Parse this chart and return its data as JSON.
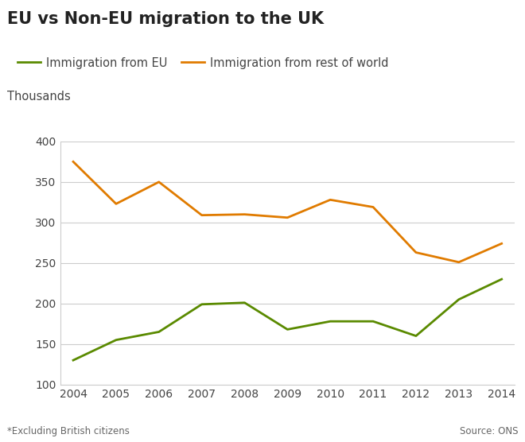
{
  "title": "EU vs Non-EU migration to the UK",
  "ylabel": "Thousands",
  "years": [
    2004,
    2005,
    2006,
    2007,
    2008,
    2009,
    2010,
    2011,
    2012,
    2013,
    2014
  ],
  "eu_immigration": [
    130,
    155,
    165,
    199,
    201,
    168,
    178,
    178,
    160,
    205,
    230
  ],
  "non_eu_immigration": [
    375,
    323,
    350,
    309,
    310,
    306,
    328,
    319,
    263,
    251,
    274
  ],
  "eu_color": "#5a8a00",
  "non_eu_color": "#e07b00",
  "eu_label": "Immigration from EU",
  "non_eu_label": "Immigration from rest of world",
  "ylim": [
    100,
    400
  ],
  "yticks": [
    100,
    150,
    200,
    250,
    300,
    350,
    400
  ],
  "footnote": "*Excluding British citizens",
  "source": "Source: ONS",
  "background_color": "#ffffff",
  "grid_color": "#cccccc",
  "title_fontsize": 15,
  "legend_fontsize": 10.5,
  "tick_fontsize": 10,
  "thousands_fontsize": 10.5,
  "footnote_fontsize": 8.5,
  "line_width": 2.0
}
